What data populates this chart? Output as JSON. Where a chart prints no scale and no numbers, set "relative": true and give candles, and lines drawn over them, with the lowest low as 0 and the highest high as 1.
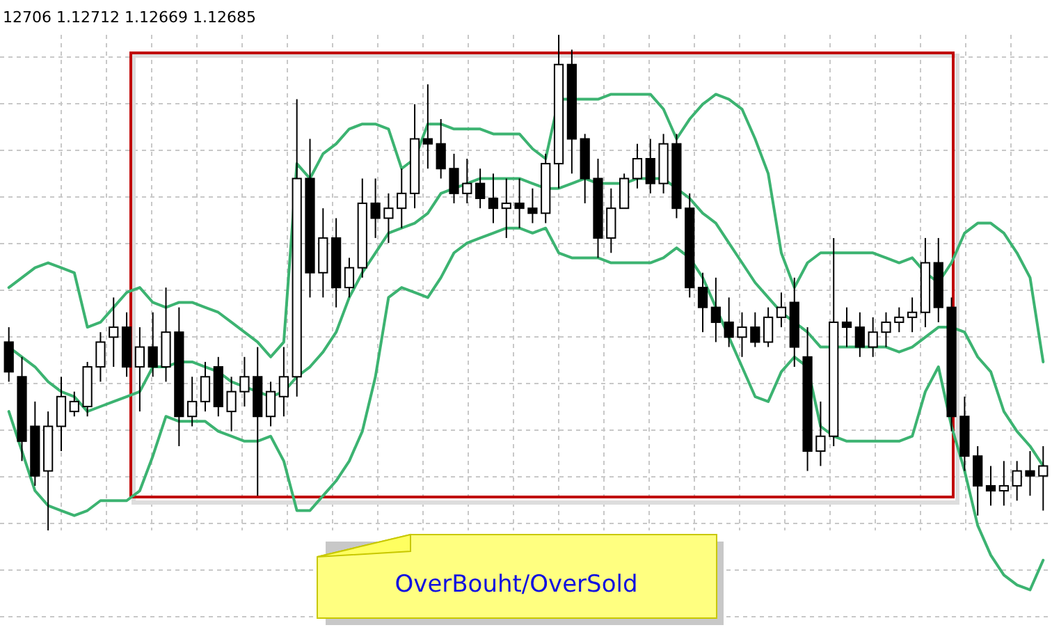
{
  "chart_data": {
    "type": "candlestick",
    "relative": true,
    "grid": true,
    "tick_labels": false,
    "annotations": [
      "12706 1.12712 1.12669 1.12685",
      "OverBouht/OverSold"
    ],
    "categories": [
      null,
      null,
      null,
      null,
      null,
      null,
      null,
      null,
      null,
      null,
      null,
      null,
      null,
      null,
      null,
      null,
      null,
      null,
      null,
      null,
      null,
      null,
      null,
      null,
      null,
      null,
      null,
      null,
      null,
      null,
      null,
      null,
      null,
      null,
      null,
      null,
      null,
      null,
      null,
      null,
      null,
      null,
      null,
      null,
      null,
      null,
      null,
      null,
      null,
      null,
      null,
      null,
      null,
      null,
      null,
      null,
      null,
      null,
      null,
      null,
      null,
      null,
      null,
      null,
      null,
      null,
      null,
      null,
      null,
      null,
      null,
      null,
      null,
      null,
      null,
      null,
      null,
      null,
      null,
      null
    ],
    "ohlc": [
      [
        0.38,
        0.41,
        0.3,
        0.32
      ],
      [
        0.31,
        0.35,
        0.14,
        0.18
      ],
      [
        0.21,
        0.26,
        0.09,
        0.11
      ],
      [
        0.12,
        0.24,
        0,
        0.21
      ],
      [
        0.21,
        0.31,
        0.16,
        0.27
      ],
      [
        0.24,
        0.28,
        0.23,
        0.26
      ],
      [
        0.25,
        0.34,
        0.23,
        0.33
      ],
      [
        0.33,
        0.4,
        0.3,
        0.38
      ],
      [
        0.39,
        0.47,
        0.33,
        0.41
      ],
      [
        0.41,
        0.44,
        0.31,
        0.33
      ],
      [
        0.33,
        0.41,
        0.24,
        0.37
      ],
      [
        0.37,
        0.44,
        0.31,
        0.33
      ],
      [
        0.33,
        0.49,
        0.3,
        0.4
      ],
      [
        0.4,
        0.45,
        0.17,
        0.23
      ],
      [
        0.23,
        0.31,
        0.21,
        0.26
      ],
      [
        0.26,
        0.34,
        0.24,
        0.31
      ],
      [
        0.33,
        0.35,
        0.23,
        0.25
      ],
      [
        0.24,
        0.31,
        0.2,
        0.28
      ],
      [
        0.28,
        0.35,
        0.25,
        0.31
      ],
      [
        0.31,
        0.37,
        0.07,
        0.23
      ],
      [
        0.23,
        0.3,
        0.21,
        0.28
      ],
      [
        0.27,
        0.37,
        0.23,
        0.31
      ],
      [
        0.31,
        0.87,
        0.27,
        0.71
      ],
      [
        0.71,
        0.79,
        0.47,
        0.52
      ],
      [
        0.52,
        0.65,
        0.47,
        0.59
      ],
      [
        0.59,
        0.63,
        0.45,
        0.49
      ],
      [
        0.49,
        0.55,
        0.47,
        0.53
      ],
      [
        0.53,
        0.71,
        0.51,
        0.66
      ],
      [
        0.66,
        0.71,
        0.59,
        0.63
      ],
      [
        0.63,
        0.68,
        0.58,
        0.65
      ],
      [
        0.65,
        0.73,
        0.61,
        0.68
      ],
      [
        0.68,
        0.86,
        0.65,
        0.79
      ],
      [
        0.79,
        0.9,
        0.73,
        0.78
      ],
      [
        0.78,
        0.83,
        0.71,
        0.73
      ],
      [
        0.73,
        0.76,
        0.66,
        0.68
      ],
      [
        0.68,
        0.75,
        0.66,
        0.7
      ],
      [
        0.7,
        0.73,
        0.65,
        0.67
      ],
      [
        0.67,
        0.72,
        0.62,
        0.65
      ],
      [
        0.65,
        0.71,
        0.59,
        0.66
      ],
      [
        0.66,
        0.71,
        0.61,
        0.65
      ],
      [
        0.65,
        0.69,
        0.62,
        0.64
      ],
      [
        0.64,
        0.76,
        0.62,
        0.74
      ],
      [
        0.74,
        1,
        0.69,
        0.94
      ],
      [
        0.94,
        0.97,
        0.72,
        0.79
      ],
      [
        0.79,
        0.8,
        0.66,
        0.71
      ],
      [
        0.71,
        0.75,
        0.55,
        0.59
      ],
      [
        0.59,
        0.69,
        0.56,
        0.65
      ],
      [
        0.65,
        0.72,
        0.65,
        0.71
      ],
      [
        0.71,
        0.78,
        0.69,
        0.75
      ],
      [
        0.75,
        0.79,
        0.68,
        0.7
      ],
      [
        0.7,
        0.8,
        0.68,
        0.78
      ],
      [
        0.78,
        0.8,
        0.63,
        0.65
      ],
      [
        0.65,
        0.68,
        0.47,
        0.49
      ],
      [
        0.49,
        0.52,
        0.4,
        0.45
      ],
      [
        0.45,
        0.51,
        0.38,
        0.42
      ],
      [
        0.42,
        0.47,
        0.37,
        0.39
      ],
      [
        0.39,
        0.44,
        0.35,
        0.41
      ],
      [
        0.41,
        0.44,
        0.37,
        0.38
      ],
      [
        0.38,
        0.45,
        0.37,
        0.43
      ],
      [
        0.43,
        0.48,
        0.41,
        0.45
      ],
      [
        0.46,
        0.51,
        0.33,
        0.37
      ],
      [
        0.35,
        0.41,
        0.12,
        0.16
      ],
      [
        0.16,
        0.26,
        0.13,
        0.19
      ],
      [
        0.19,
        0.59,
        0.17,
        0.42
      ],
      [
        0.42,
        0.45,
        0.37,
        0.41
      ],
      [
        0.41,
        0.44,
        0.35,
        0.37
      ],
      [
        0.37,
        0.43,
        0.35,
        0.4
      ],
      [
        0.4,
        0.44,
        0.37,
        0.42
      ],
      [
        0.42,
        0.45,
        0.4,
        0.43
      ],
      [
        0.43,
        0.47,
        0.4,
        0.44
      ],
      [
        0.44,
        0.59,
        0.41,
        0.54
      ],
      [
        0.54,
        0.59,
        0.42,
        0.45
      ],
      [
        0.45,
        0.47,
        0.2,
        0.23
      ],
      [
        0.23,
        0.27,
        0.12,
        0.15
      ],
      [
        0.15,
        0.17,
        0.03,
        0.09
      ],
      [
        0.09,
        0.13,
        0.05,
        0.08
      ],
      [
        0.08,
        0.14,
        0.05,
        0.09
      ],
      [
        0.09,
        0.14,
        0.06,
        0.12
      ],
      [
        0.12,
        0.16,
        0.07,
        0.11
      ],
      [
        0.11,
        0.17,
        0.04,
        0.13
      ]
    ],
    "series": [
      {
        "type": "line",
        "color": "#3cb371",
        "values": [
          0.49,
          0.51,
          0.53,
          0.54,
          0.53,
          0.52,
          0.41,
          0.42,
          0.45,
          0.48,
          0.49,
          0.46,
          0.45,
          0.46,
          0.46,
          0.45,
          0.44,
          0.42,
          0.4,
          0.38,
          0.35,
          0.38,
          0.74,
          0.71,
          0.76,
          0.78,
          0.81,
          0.82,
          0.82,
          0.81,
          0.73,
          0.75,
          0.82,
          0.82,
          0.81,
          0.81,
          0.81,
          0.8,
          0.8,
          0.8,
          0.77,
          0.75,
          0.87,
          0.87,
          0.87,
          0.87,
          0.88,
          0.88,
          0.88,
          0.88,
          0.85,
          0.79,
          0.83,
          0.86,
          0.88,
          0.87,
          0.85,
          0.79,
          0.72,
          0.56,
          0.49,
          0.54,
          0.56,
          0.56,
          0.56,
          0.56,
          0.56,
          0.55,
          0.54,
          0.55,
          0.52,
          0.5,
          0.54,
          0.6,
          0.62,
          0.62,
          0.6,
          0.56,
          0.51,
          0.34
        ]
      },
      {
        "type": "line",
        "color": "#3cb371",
        "values": [
          0.37,
          0.35,
          0.33,
          0.3,
          0.28,
          0.27,
          0.24,
          0.25,
          0.26,
          0.27,
          0.28,
          0.33,
          0.33,
          0.34,
          0.34,
          0.33,
          0.32,
          0.3,
          0.29,
          0.28,
          0.27,
          0.28,
          0.31,
          0.33,
          0.36,
          0.4,
          0.47,
          0.52,
          0.56,
          0.6,
          0.61,
          0.62,
          0.64,
          0.68,
          0.69,
          0.7,
          0.71,
          0.71,
          0.71,
          0.71,
          0.7,
          0.69,
          0.69,
          0.7,
          0.71,
          0.7,
          0.7,
          0.7,
          0.71,
          0.71,
          0.71,
          0.69,
          0.67,
          0.64,
          0.62,
          0.58,
          0.54,
          0.5,
          0.47,
          0.44,
          0.42,
          0.4,
          0.37,
          0.37,
          0.37,
          0.37,
          0.37,
          0.37,
          0.36,
          0.37,
          0.39,
          0.41,
          0.41,
          0.4,
          0.35,
          0.32,
          0.24,
          0.2,
          0.17,
          0.13
        ]
      },
      {
        "type": "line",
        "color": "#3cb371",
        "values": [
          0.24,
          0.16,
          0.08,
          0.05,
          0.04,
          0.03,
          0.04,
          0.06,
          0.06,
          0.06,
          0.08,
          0.15,
          0.23,
          0.22,
          0.22,
          0.22,
          0.2,
          0.19,
          0.18,
          0.18,
          0.19,
          0.14,
          0.04,
          0.04,
          0.07,
          0.1,
          0.14,
          0.2,
          0.31,
          0.47,
          0.49,
          0.48,
          0.47,
          0.51,
          0.56,
          0.58,
          0.59,
          0.6,
          0.61,
          0.61,
          0.6,
          0.61,
          0.56,
          0.55,
          0.55,
          0.55,
          0.54,
          0.54,
          0.54,
          0.54,
          0.55,
          0.57,
          0.55,
          0.51,
          0.45,
          0.39,
          0.33,
          0.27,
          0.26,
          0.32,
          0.35,
          0.33,
          0.21,
          0.19,
          0.18,
          0.18,
          0.18,
          0.18,
          0.18,
          0.19,
          0.28,
          0.33,
          0.21,
          0.12,
          0.01,
          -0.05,
          -0.09,
          -0.11,
          -0.12,
          -0.06
        ]
      }
    ]
  }
}
